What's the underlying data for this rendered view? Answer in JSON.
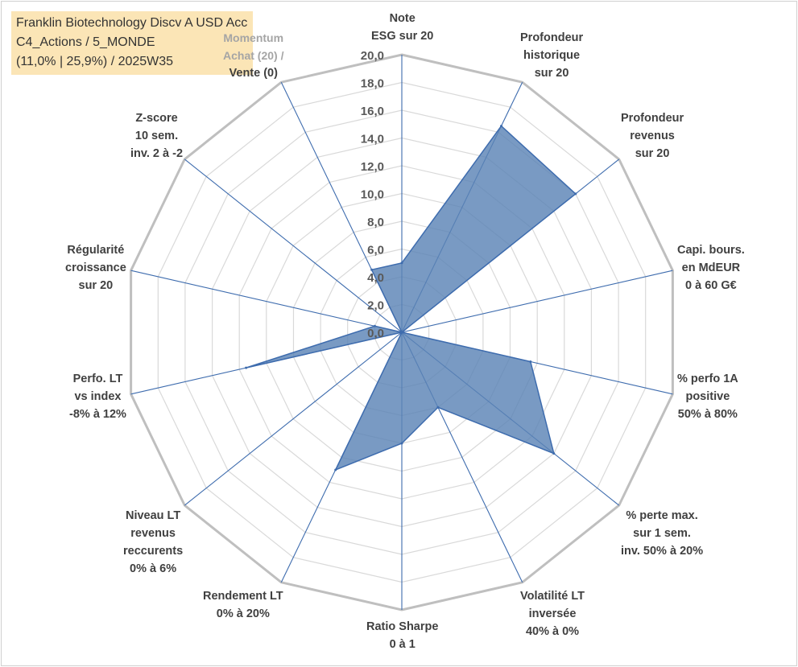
{
  "info": {
    "line1": "Franklin Biotechnology Discv A USD Acc",
    "line2": "C4_Actions / 5_MONDE",
    "line3": "(11,0% | 25,9%) / 2025W35"
  },
  "chart_data": {
    "type": "radar",
    "title": "",
    "rlim": [
      0,
      20
    ],
    "tick_labels": [
      "0,0",
      "2,0",
      "4,0",
      "6,0",
      "8,0",
      "10,0",
      "12,0",
      "14,0",
      "16,0",
      "18,0",
      "20,0"
    ],
    "grid": true,
    "axes": [
      {
        "label": [
          "Note",
          "ESG sur 20"
        ],
        "value": 5.0
      },
      {
        "label": [
          "Profondeur",
          "historique",
          "sur 20"
        ],
        "value": 16.5
      },
      {
        "label": [
          "Profondeur",
          "revenus",
          "sur 20"
        ],
        "value": 16.0
      },
      {
        "label": [
          "Capi. bours.",
          "en MdEUR",
          "0 à 60 G€"
        ],
        "value": 0.0
      },
      {
        "label": [
          "% perfo 1A",
          "positive",
          "50% à 80%"
        ],
        "value": 9.5
      },
      {
        "label": [
          "% perte max.",
          "sur 1 sem.",
          "inv. 50% à 20%"
        ],
        "value": 14.0
      },
      {
        "label": [
          "Volatilité LT",
          "inversée",
          "40% à 0%"
        ],
        "value": 6.0
      },
      {
        "label": [
          "Ratio Sharpe",
          "0 à 1"
        ],
        "value": 8.0
      },
      {
        "label": [
          "Rendement LT",
          "0% à 20%"
        ],
        "value": 11.0
      },
      {
        "label": [
          "Niveau LT",
          "revenus",
          "reccurents",
          "0% à 6%"
        ],
        "value": 0.0
      },
      {
        "label": [
          "Perfo. LT",
          "vs index",
          "-8% à 12%"
        ],
        "value": 11.5
      },
      {
        "label": [
          "Régularité",
          "croissance",
          "sur 20"
        ],
        "value": 2.0
      },
      {
        "label": [
          "Z-score",
          "10 sem.",
          "inv. 2 à -2"
        ],
        "value": 0.0
      },
      {
        "label": [
          "Momentum",
          "Achat (20) /",
          "Vente (0)"
        ],
        "value": 5.0
      }
    ],
    "series": [
      {
        "values": [
          5.0,
          16.5,
          16.0,
          0.0,
          9.5,
          14.0,
          6.0,
          8.0,
          11.0,
          0.0,
          11.5,
          2.0,
          0.0,
          5.0
        ]
      }
    ],
    "colors": {
      "fill": "#5b84b6",
      "line": "#3e6cae",
      "spoke": "#3e6cae",
      "grid": "#d9d9d9",
      "outer": "#bfbfbf"
    }
  }
}
